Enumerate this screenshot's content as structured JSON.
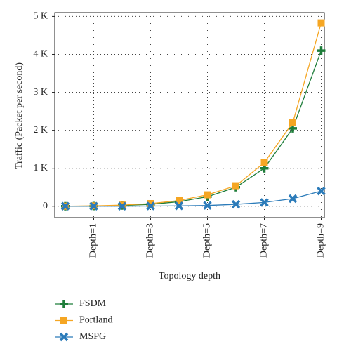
{
  "chart_data": {
    "type": "line",
    "x_label": "Topology depth",
    "y_label": "Traffic (Packet per second)",
    "categories": [
      null,
      "Depth=1",
      null,
      "Depth=3",
      null,
      "Depth=5",
      null,
      "Depth=7",
      null,
      "Depth=9"
    ],
    "series": [
      {
        "name": "FSDM",
        "color": "#1e7d3a",
        "marker": "plus",
        "values": [
          0,
          5,
          20,
          50,
          120,
          250,
          500,
          1000,
          2050,
          4100
        ]
      },
      {
        "name": "Portland",
        "color": "#f5a623",
        "marker": "square",
        "values": [
          0,
          10,
          30,
          70,
          150,
          300,
          540,
          1150,
          2200,
          4830
        ]
      },
      {
        "name": "MSPG",
        "color": "#2b7bb9",
        "marker": "x",
        "values": [
          0,
          0,
          0,
          5,
          10,
          20,
          50,
          100,
          200,
          400
        ]
      }
    ],
    "ylim": [
      -300,
      5100
    ],
    "yticks": [
      0,
      {
        "value": 1000,
        "label": "1 K"
      },
      {
        "value": 2000,
        "label": "2 K"
      },
      {
        "value": 3000,
        "label": "3 K"
      },
      {
        "value": 4000,
        "label": "4 K"
      },
      {
        "value": 5000,
        "label": "5 K"
      }
    ],
    "grid": true,
    "legend": "bottom-left"
  }
}
